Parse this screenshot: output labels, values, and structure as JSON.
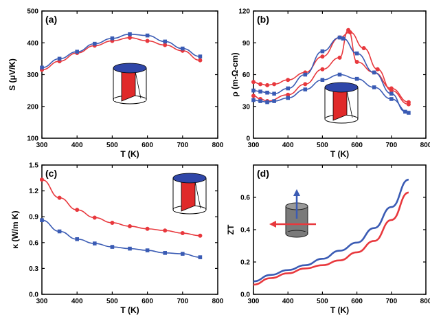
{
  "colors": {
    "red": "#e8383d",
    "blue": "#3a5bb4",
    "cyl_top": "#2f46a8",
    "cyl_gray": "#7a7a7a"
  },
  "chart_data": [
    {
      "panel": "(a)",
      "type": "line",
      "xlabel": "T (K)",
      "ylabel": "S (μV/K)",
      "xlim": [
        300,
        800
      ],
      "ylim": [
        100,
        500
      ],
      "xticks": [
        300,
        400,
        500,
        600,
        700,
        800
      ],
      "yticks": [
        100,
        200,
        300,
        400,
        500
      ],
      "inset_icon": "cylinder-icon",
      "series": [
        {
          "color": "red",
          "marker": "circle",
          "x": [
            300,
            350,
            400,
            450,
            500,
            550,
            600,
            650,
            700,
            750
          ],
          "y": [
            315,
            342,
            368,
            391,
            406,
            416,
            406,
            393,
            375,
            345
          ]
        },
        {
          "color": "blue",
          "marker": "square",
          "x": [
            300,
            350,
            400,
            450,
            500,
            550,
            600,
            650,
            700,
            750
          ],
          "y": [
            322,
            350,
            372,
            397,
            414,
            427,
            423,
            404,
            382,
            357
          ]
        }
      ]
    },
    {
      "panel": "(b)",
      "type": "line",
      "xlabel": "T (K)",
      "ylabel": "ρ (m-Ω-cm)",
      "xlim": [
        300,
        800
      ],
      "ylim": [
        0,
        120
      ],
      "xticks": [
        300,
        400,
        500,
        600,
        700,
        800
      ],
      "yticks": [
        0,
        30,
        60,
        90,
        120
      ],
      "inset_icon": "cylinder-icon",
      "series": [
        {
          "color": "red",
          "marker": "circle",
          "x": [
            300,
            320,
            340,
            360,
            400,
            450,
            500,
            550,
            580,
            620,
            660,
            700,
            750
          ],
          "y": [
            53,
            51,
            50,
            51,
            55,
            62,
            77,
            95,
            100,
            85,
            65,
            45,
            32
          ]
        },
        {
          "color": "red",
          "marker": "circle",
          "x": [
            300,
            320,
            340,
            400,
            450,
            500,
            550,
            575,
            600,
            650,
            700,
            750
          ],
          "y": [
            40,
            37,
            35,
            41,
            51,
            65,
            76,
            102,
            72,
            62,
            47,
            34
          ]
        },
        {
          "color": "blue",
          "marker": "square",
          "x": [
            300,
            320,
            340,
            360,
            400,
            450,
            500,
            550,
            560,
            600,
            650,
            700,
            740
          ],
          "y": [
            45,
            44,
            43,
            42,
            47,
            60,
            82,
            95,
            94,
            80,
            62,
            42,
            25
          ]
        },
        {
          "color": "blue",
          "marker": "square",
          "x": [
            300,
            320,
            340,
            360,
            400,
            450,
            500,
            550,
            600,
            650,
            700,
            750
          ],
          "y": [
            36,
            35,
            34,
            35,
            38,
            46,
            55,
            60,
            56,
            48,
            37,
            24
          ]
        }
      ]
    },
    {
      "panel": "(c)",
      "type": "line",
      "xlabel": "T (K)",
      "ylabel": "κ (W/m K)",
      "xlim": [
        300,
        800
      ],
      "ylim": [
        0,
        1.5
      ],
      "xticks": [
        300,
        400,
        500,
        600,
        700,
        800
      ],
      "yticks": [
        0.0,
        0.3,
        0.6,
        0.9,
        1.2,
        1.5
      ],
      "inset_icon": "cylinder-icon",
      "series": [
        {
          "color": "red",
          "marker": "circle",
          "x": [
            300,
            350,
            400,
            450,
            500,
            550,
            600,
            650,
            700,
            750
          ],
          "y": [
            1.33,
            1.12,
            0.98,
            0.89,
            0.83,
            0.79,
            0.76,
            0.74,
            0.71,
            0.68
          ]
        },
        {
          "color": "blue",
          "marker": "square",
          "x": [
            300,
            350,
            400,
            450,
            500,
            550,
            600,
            650,
            700,
            750
          ],
          "y": [
            0.86,
            0.73,
            0.64,
            0.59,
            0.55,
            0.53,
            0.51,
            0.48,
            0.47,
            0.43
          ]
        }
      ]
    },
    {
      "panel": "(d)",
      "type": "line",
      "xlabel": "T (K)",
      "ylabel": "ZT",
      "xlim": [
        300,
        800
      ],
      "ylim": [
        0.0,
        0.8
      ],
      "xticks": [
        300,
        400,
        500,
        600,
        700,
        800
      ],
      "yticks": [
        0.0,
        0.2,
        0.4,
        0.6
      ],
      "inset_icon": "cylinder-arrows-icon",
      "series": [
        {
          "color": "blue",
          "marker": "none",
          "x": [
            300,
            350,
            400,
            450,
            500,
            550,
            600,
            650,
            700,
            750
          ],
          "y": [
            0.08,
            0.12,
            0.15,
            0.18,
            0.22,
            0.27,
            0.32,
            0.41,
            0.54,
            0.71
          ]
        },
        {
          "color": "red",
          "marker": "none",
          "x": [
            300,
            350,
            400,
            450,
            500,
            550,
            600,
            650,
            700,
            750
          ],
          "y": [
            0.06,
            0.1,
            0.13,
            0.16,
            0.18,
            0.21,
            0.26,
            0.33,
            0.46,
            0.63
          ]
        }
      ]
    }
  ]
}
